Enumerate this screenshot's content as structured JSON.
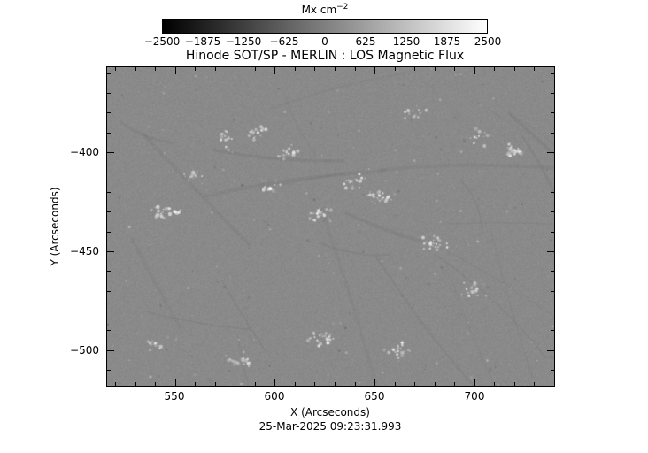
{
  "chart_data": {
    "type": "heatmap",
    "title": "Hinode SOT/SP - MERLIN : LOS Magnetic Flux",
    "xlabel": "X (Arcseconds)",
    "ylabel": "Y (Arcseconds)",
    "timestamp": "25-Mar-2025 09:23:31.993",
    "xlim": [
      516,
      740
    ],
    "ylim": [
      -518,
      -357
    ],
    "x_ticks": [
      {
        "value": 550,
        "label": "550"
      },
      {
        "value": 600,
        "label": "600"
      },
      {
        "value": 650,
        "label": "650"
      },
      {
        "value": 700,
        "label": "700"
      }
    ],
    "y_ticks": [
      {
        "value": -400,
        "label": "−400"
      },
      {
        "value": -450,
        "label": "−450"
      },
      {
        "value": -500,
        "label": "−500"
      }
    ],
    "colorbar": {
      "unit_base": "Mx cm",
      "unit_exponent": "−2",
      "min": -2500,
      "max": 2500,
      "gradient": [
        "#000000",
        "#ffffff"
      ],
      "ticks": [
        {
          "value": -2500,
          "label": "−2500"
        },
        {
          "value": -1875,
          "label": "−1875"
        },
        {
          "value": -1250,
          "label": "−1250"
        },
        {
          "value": -625,
          "label": "−625"
        },
        {
          "value": 0,
          "label": "0"
        },
        {
          "value": 625,
          "label": "625"
        },
        {
          "value": 1250,
          "label": "1250"
        },
        {
          "value": 1875,
          "label": "1875"
        },
        {
          "value": 2500,
          "label": "2500"
        }
      ]
    },
    "appearance": {
      "base_gray": "#8a8a8a",
      "description": "Mostly uniform mid-gray LOS magnetogram with scattered small bright positive-flux speckles, a few dark negative specks and faint diagonal lanes"
    },
    "bright_regions": [
      [
        575,
        -393
      ],
      [
        592,
        -390
      ],
      [
        606,
        -400
      ],
      [
        560,
        -412
      ],
      [
        596,
        -418
      ],
      [
        640,
        -415
      ],
      [
        652,
        -422
      ],
      [
        622,
        -432
      ],
      [
        680,
        -446
      ],
      [
        545,
        -430
      ],
      [
        700,
        -470
      ],
      [
        662,
        -500
      ],
      [
        540,
        -498
      ],
      [
        582,
        -505
      ],
      [
        624,
        -494
      ],
      [
        702,
        -392
      ],
      [
        720,
        -400
      ],
      [
        670,
        -380
      ]
    ]
  }
}
